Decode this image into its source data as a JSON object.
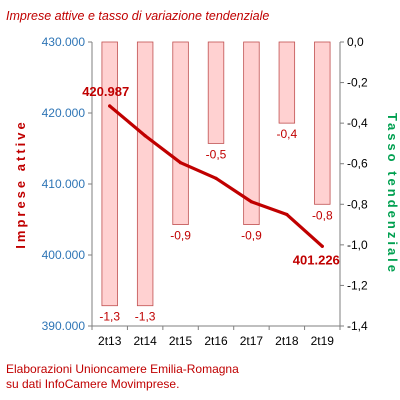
{
  "chart_data": {
    "type": "bar+line",
    "title": "Imprese attive e tasso di variazione tendenziale",
    "categories": [
      "2t13",
      "2t14",
      "2t15",
      "2t16",
      "2t17",
      "2t18",
      "2t19"
    ],
    "series": [
      {
        "name": "Imprese attive",
        "type": "line",
        "axis": "left",
        "values": [
          420987,
          416800,
          413000,
          410800,
          407500,
          405700,
          401226
        ],
        "labels": [
          "420.987",
          "",
          "",
          "",
          "",
          "",
          "401.226"
        ]
      },
      {
        "name": "Tasso tendenziale",
        "type": "bar",
        "axis": "right",
        "values": [
          -1.3,
          -1.3,
          -0.9,
          -0.5,
          -0.9,
          -0.4,
          -0.8
        ],
        "labels": [
          "-1,3",
          "-1,3",
          "-0,9",
          "-0,5",
          "-0,9",
          "-0,4",
          "-0,8"
        ]
      }
    ],
    "ylabel": "Imprese attive",
    "y2label": "Tasso tendenziale",
    "ylim": [
      390000,
      430000
    ],
    "y2lim": [
      -1.4,
      0
    ],
    "y_ticks": [
      "390.000",
      "400.000",
      "410.000",
      "420.000",
      "430.000"
    ],
    "y2_ticks": [
      "-1,4",
      "-1,2",
      "-1,0",
      "-0,8",
      "-0,6",
      "-0,4",
      "-0,2",
      "0,0"
    ],
    "grid": false,
    "legend": "none",
    "colors": {
      "bar_fill": "#ffd1d1",
      "bar_stroke": "#c05050",
      "line": "#c00000",
      "left_axis": "#2e75b6",
      "right_axis_label": "#00a050",
      "left_axis_label": "#c00000"
    }
  },
  "footer": {
    "line1": "Elaborazioni Unioncamere Emilia-Romagna",
    "line2": "su dati InfoCamere Movimprese."
  }
}
